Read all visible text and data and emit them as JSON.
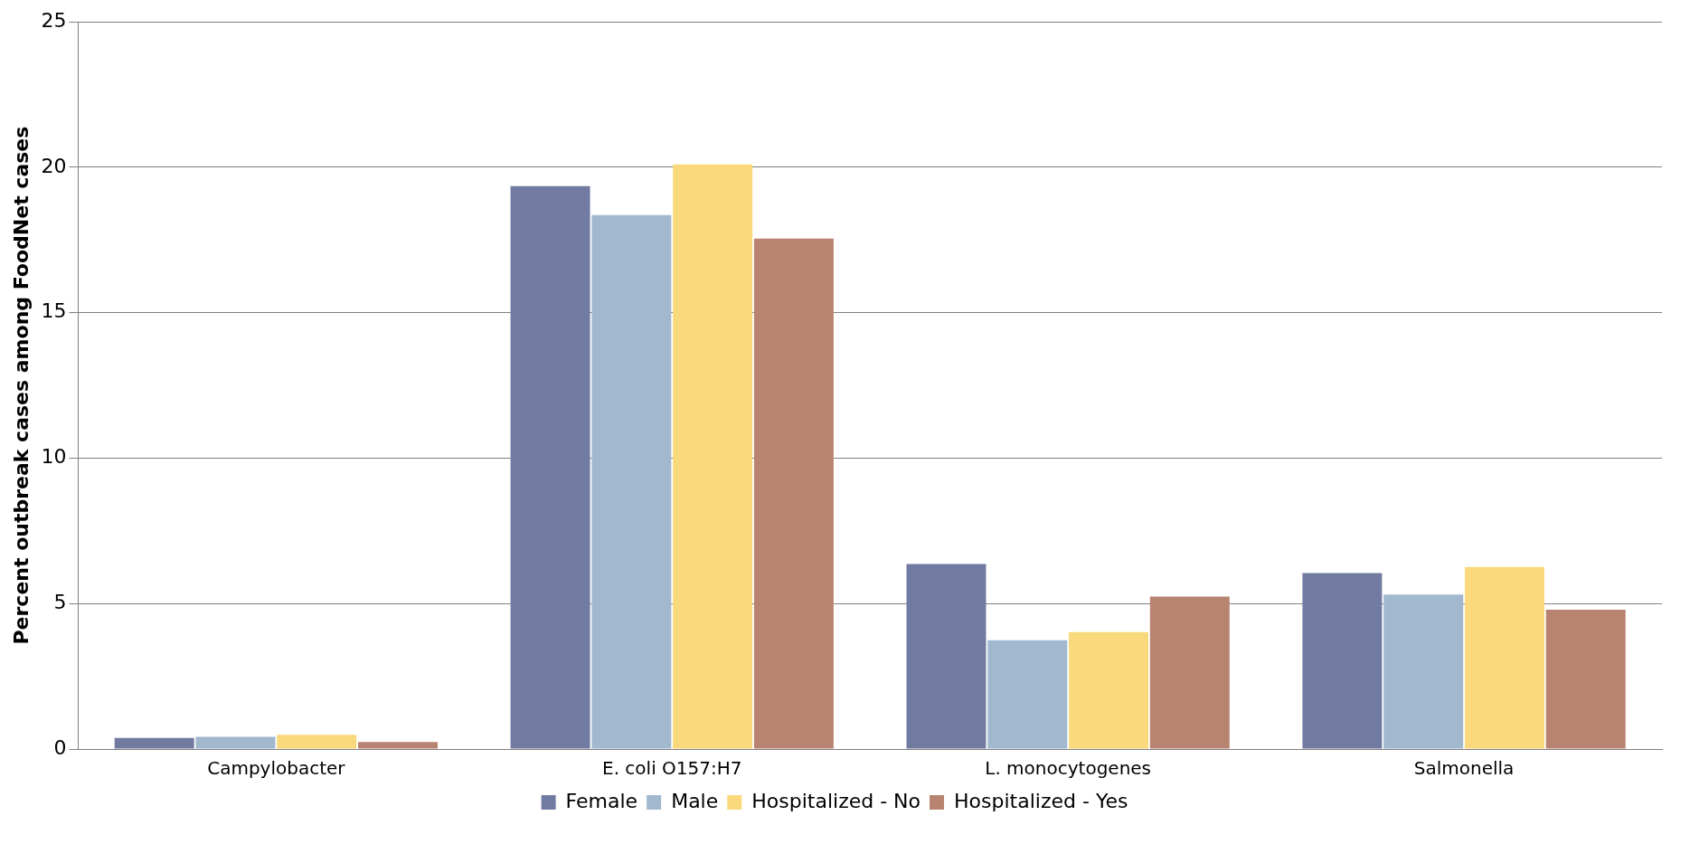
{
  "chart_data": {
    "type": "bar",
    "ylabel": "Percent outbreak cases among FoodNet cases",
    "categories": [
      "Campylobacter",
      "E. coli O157:H7",
      "L. monocytogenes",
      "Salmonella"
    ],
    "series": [
      {
        "name": "Female",
        "color": "#717ba1",
        "values": [
          0.38,
          19.35,
          6.36,
          6.05
        ]
      },
      {
        "name": "Male",
        "color": "#a1b8cf",
        "values": [
          0.42,
          18.36,
          3.74,
          5.31
        ]
      },
      {
        "name": "Hospitalized - No",
        "color": "#f9d97c",
        "values": [
          0.49,
          20.1,
          4.02,
          6.26
        ]
      },
      {
        "name": "Hospitalized - Yes",
        "color": "#b88471",
        "values": [
          0.24,
          17.55,
          5.24,
          4.79
        ]
      }
    ],
    "ylim": [
      0,
      25
    ],
    "yticks": [
      0,
      5,
      10,
      15,
      20,
      25
    ],
    "grid": "y",
    "legend": "bottom"
  }
}
